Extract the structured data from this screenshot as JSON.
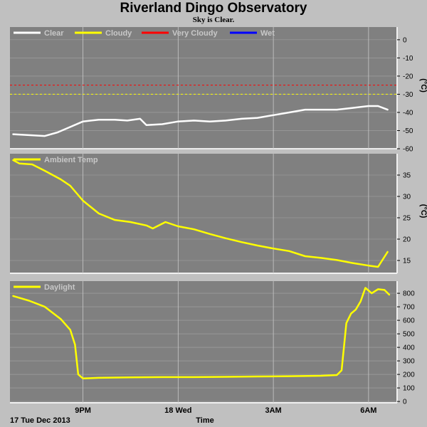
{
  "page": {
    "title": "Riverland Dingo Observatory",
    "subtitle": "Sky is Clear.",
    "date_label": "17 Tue Dec 2013",
    "xlabel": "Time"
  },
  "colors": {
    "background": "#c0c0c0",
    "panel": "#808080",
    "grid": "#c8c8c8",
    "clear": "#ffffff",
    "cloudy": "#ffff00",
    "very_cloudy": "#ff0000",
    "wet": "#0000ff"
  },
  "chart_data": [
    {
      "type": "line",
      "x_ticks": [
        21,
        24,
        27,
        30
      ],
      "x_tick_labels": [
        "9PM",
        "18 Wed",
        "3AM",
        "6AM"
      ],
      "xlim": [
        18.7,
        30.9
      ],
      "xlabel": "Time",
      "ylabel": "(°C)",
      "ylim": [
        -60,
        7
      ],
      "y_ticks": [
        0,
        -10,
        -20,
        -30,
        -40,
        -50,
        -60
      ],
      "grid": true,
      "legend": [
        "Clear",
        "Cloudy",
        "Very Cloudy",
        "Wet"
      ],
      "legend_position": "top-left",
      "thresholds": [
        {
          "name": "Very Cloudy",
          "value": -25,
          "color": "#ff0000",
          "style": "dashed"
        },
        {
          "name": "Cloudy",
          "value": -30,
          "color": "#ffff00",
          "style": "dashed"
        }
      ],
      "series": [
        {
          "name": "Clear",
          "color": "#ffffff",
          "x": [
            18.8,
            19.3,
            19.8,
            20.2,
            20.6,
            21.0,
            21.5,
            22.0,
            22.4,
            22.8,
            23.0,
            23.5,
            24.0,
            24.5,
            25.0,
            25.5,
            26.0,
            26.5,
            27.0,
            27.5,
            28.0,
            28.5,
            29.0,
            29.5,
            30.0,
            30.3,
            30.6
          ],
          "y": [
            -52,
            -52.5,
            -53,
            -51,
            -48,
            -45,
            -44,
            -44,
            -44.5,
            -43.5,
            -47,
            -46.5,
            -45,
            -44.5,
            -45,
            -44.5,
            -43.5,
            -43,
            -41.5,
            -40,
            -38.5,
            -38.5,
            -38.5,
            -37.5,
            -36.5,
            -36.5,
            -38.5
          ]
        }
      ]
    },
    {
      "type": "line",
      "x_ticks": [
        21,
        24,
        27,
        30
      ],
      "xlim": [
        18.7,
        30.9
      ],
      "ylabel": "(°C)",
      "ylim": [
        12,
        40
      ],
      "y_ticks": [
        15,
        20,
        25,
        30,
        35
      ],
      "grid": true,
      "legend": [
        "Ambient Temp"
      ],
      "legend_position": "top-left",
      "series": [
        {
          "name": "Ambient Temp",
          "color": "#ffff00",
          "x": [
            18.8,
            19.0,
            19.4,
            19.8,
            20.3,
            20.6,
            21.0,
            21.5,
            22.0,
            22.5,
            23.0,
            23.2,
            23.6,
            24.0,
            24.5,
            25.0,
            25.5,
            26.0,
            26.5,
            27.0,
            27.5,
            28.0,
            28.5,
            29.0,
            29.5,
            30.0,
            30.3,
            30.6
          ],
          "y": [
            38.5,
            37.7,
            37.5,
            36,
            34,
            32.5,
            29,
            26,
            24.5,
            24,
            23.2,
            22.5,
            24,
            23,
            22.3,
            21.2,
            20.2,
            19.3,
            18.5,
            17.8,
            17.2,
            16,
            15.6,
            15.1,
            14.4,
            13.8,
            13.5,
            17
          ]
        }
      ]
    },
    {
      "type": "line",
      "x_ticks": [
        21,
        24,
        27,
        30
      ],
      "xlim": [
        18.7,
        30.9
      ],
      "ylim": [
        -10,
        890
      ],
      "y_ticks": [
        0,
        100,
        200,
        300,
        400,
        500,
        600,
        700,
        800
      ],
      "grid": true,
      "legend": [
        "Daylight"
      ],
      "legend_position": "top-left",
      "series": [
        {
          "name": "Daylight",
          "color": "#ffff00",
          "x": [
            18.8,
            19.3,
            19.8,
            20.3,
            20.6,
            20.75,
            20.85,
            21.0,
            21.5,
            22.5,
            23.5,
            24.5,
            25.5,
            26.5,
            27.5,
            28.5,
            29.0,
            29.15,
            29.3,
            29.45,
            29.6,
            29.75,
            29.9,
            30.1,
            30.3,
            30.5,
            30.65
          ],
          "y": [
            780,
            745,
            700,
            610,
            530,
            420,
            200,
            170,
            175,
            178,
            180,
            180,
            182,
            185,
            187,
            190,
            195,
            230,
            580,
            650,
            680,
            740,
            840,
            800,
            830,
            825,
            790
          ]
        }
      ]
    }
  ]
}
